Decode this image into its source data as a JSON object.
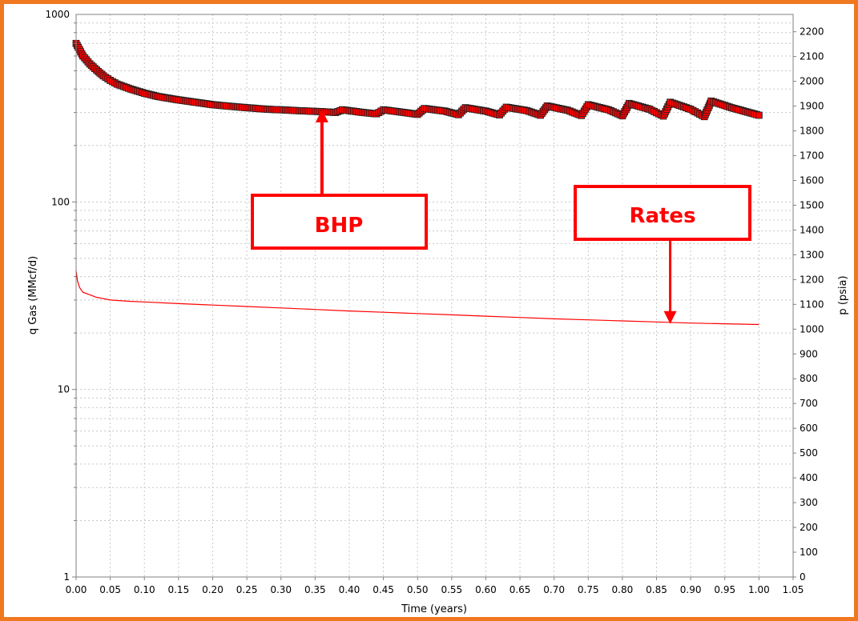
{
  "chart_data": {
    "type": "line",
    "xlabel": "Time (years)",
    "ylabel_left": "q Gas (MMcf/d)",
    "ylabel_right": "p (psia)",
    "x_ticks": [
      "0.00",
      "0.05",
      "0.10",
      "0.15",
      "0.20",
      "0.25",
      "0.30",
      "0.35",
      "0.40",
      "0.45",
      "0.50",
      "0.55",
      "0.60",
      "0.65",
      "0.70",
      "0.75",
      "0.80",
      "0.85",
      "0.90",
      "0.95",
      "1.00",
      "1.05"
    ],
    "xlim": [
      0,
      1.05
    ],
    "y_left_ticks": [
      "1",
      "10",
      "100",
      "1000"
    ],
    "y_left_scale": "log",
    "y_left_lim": [
      1,
      1000
    ],
    "y_right_ticks": [
      "0",
      "100",
      "200",
      "300",
      "400",
      "500",
      "600",
      "700",
      "800",
      "900",
      "1000",
      "1100",
      "1200",
      "1300",
      "1400",
      "1500",
      "1600",
      "1700",
      "1800",
      "1900",
      "2000",
      "2100",
      "2200"
    ],
    "y_right_lim": [
      0,
      2270
    ],
    "grid": true,
    "colors": {
      "series": "#ff0000",
      "marker_outline": "#202020",
      "annotation": "#ff0000",
      "frame": "#f07820"
    },
    "series": [
      {
        "axis": "left",
        "style": "markers",
        "x": [
          0.0,
          0.01,
          0.02,
          0.03,
          0.04,
          0.05,
          0.06,
          0.08,
          0.1,
          0.12,
          0.15,
          0.18,
          0.2,
          0.22,
          0.25,
          0.28,
          0.3,
          0.33,
          0.36,
          0.38,
          0.39,
          0.42,
          0.44,
          0.45,
          0.48,
          0.5,
          0.51,
          0.54,
          0.56,
          0.57,
          0.6,
          0.62,
          0.63,
          0.66,
          0.68,
          0.69,
          0.72,
          0.74,
          0.75,
          0.78,
          0.8,
          0.81,
          0.84,
          0.86,
          0.87,
          0.9,
          0.92,
          0.93,
          0.96,
          1.0
        ],
        "y": [
          700,
          600,
          545,
          505,
          470,
          445,
          425,
          400,
          380,
          365,
          350,
          338,
          330,
          325,
          318,
          312,
          310,
          306,
          303,
          300,
          310,
          300,
          295,
          310,
          300,
          293,
          315,
          305,
          292,
          318,
          305,
          291,
          320,
          307,
          290,
          325,
          308,
          289,
          330,
          310,
          288,
          335,
          312,
          287,
          340,
          312,
          285,
          345,
          318,
          290
        ]
      },
      {
        "axis": "left",
        "style": "line",
        "x": [
          0.0,
          0.002,
          0.005,
          0.01,
          0.02,
          0.03,
          0.05,
          0.08,
          0.1,
          0.15,
          0.2,
          0.25,
          0.3,
          0.35,
          0.4,
          0.45,
          0.5,
          0.55,
          0.6,
          0.65,
          0.7,
          0.75,
          0.8,
          0.85,
          0.9,
          0.95,
          1.0
        ],
        "y": [
          43,
          38,
          35,
          33,
          32,
          31,
          30,
          29.5,
          29.3,
          28.7,
          28.2,
          27.7,
          27.2,
          26.7,
          26.2,
          25.8,
          25.4,
          25.0,
          24.6,
          24.2,
          23.8,
          23.5,
          23.2,
          22.9,
          22.6,
          22.4,
          22.2
        ]
      }
    ],
    "annotations": [
      {
        "text": "BHP",
        "arrow_to": {
          "x": 0.36,
          "y_left": 305
        }
      },
      {
        "text": "Rates",
        "arrow_to": {
          "x": 0.87,
          "y_left": 22.8
        }
      }
    ]
  }
}
